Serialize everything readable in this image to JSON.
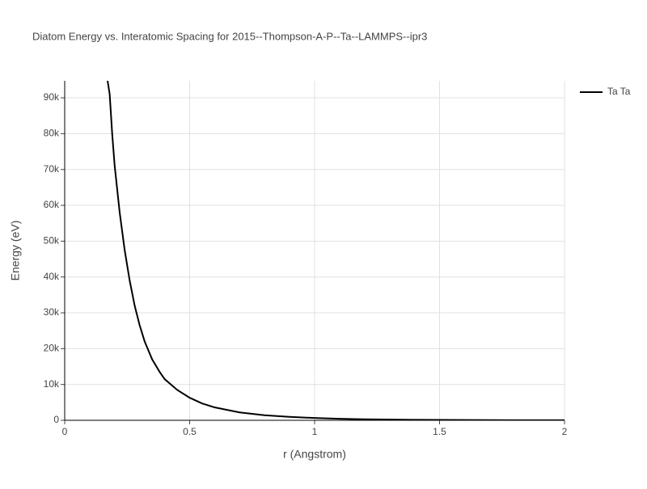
{
  "chart_data": {
    "type": "line",
    "title": "Diatom Energy vs. Interatomic Spacing for 2015--Thompson-A-P--Ta--LAMMPS--ipr3",
    "x_label": "r (Angstrom)",
    "y_label": "Energy (eV)",
    "x": [
      0.17,
      0.18,
      0.19,
      0.2,
      0.22,
      0.24,
      0.26,
      0.28,
      0.3,
      0.32,
      0.35,
      0.38,
      0.4,
      0.45,
      0.5,
      0.55,
      0.6,
      0.7,
      0.8,
      0.9,
      1.0,
      1.1,
      1.2,
      1.4,
      1.6,
      1.8,
      2.0
    ],
    "series": [
      {
        "name": "Ta Ta",
        "color": "#000000",
        "values": [
          95500,
          91000,
          80000,
          71000,
          58000,
          47500,
          39000,
          32000,
          26500,
          22000,
          17000,
          13500,
          11500,
          8500,
          6300,
          4700,
          3600,
          2200,
          1400,
          950,
          650,
          420,
          280,
          140,
          80,
          40,
          20
        ]
      }
    ],
    "xlim": [
      0,
      2
    ],
    "xticks": [
      0,
      0.5,
      1,
      1.5,
      2
    ],
    "ylim": [
      0,
      94750
    ],
    "yticks": [
      {
        "value": 0,
        "label": "0"
      },
      {
        "value": 10000,
        "label": "10k"
      },
      {
        "value": 20000,
        "label": "20k"
      },
      {
        "value": 30000,
        "label": "30k"
      },
      {
        "value": 40000,
        "label": "40k"
      },
      {
        "value": 50000,
        "label": "50k"
      },
      {
        "value": 60000,
        "label": "60k"
      },
      {
        "value": 70000,
        "label": "70k"
      },
      {
        "value": 80000,
        "label": "80k"
      },
      {
        "value": 90000,
        "label": "90k"
      }
    ],
    "grid": true,
    "legend": "right"
  }
}
